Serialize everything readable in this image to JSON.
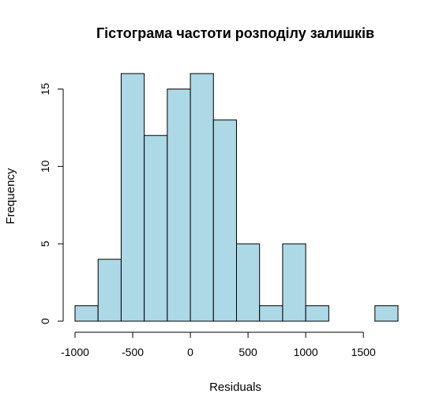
{
  "chart_data": {
    "type": "bar",
    "title": "Гістограма частоти розподілу залишків",
    "xlabel": "Residuals",
    "ylabel": "Frequency",
    "bar_color": "#add8e6",
    "border_color": "#000000",
    "grid": false,
    "bins": [
      {
        "x0": -1000,
        "x1": -800,
        "count": 1
      },
      {
        "x0": -800,
        "x1": -600,
        "count": 4
      },
      {
        "x0": -600,
        "x1": -400,
        "count": 16
      },
      {
        "x0": -400,
        "x1": -200,
        "count": 12
      },
      {
        "x0": -200,
        "x1": 0,
        "count": 15
      },
      {
        "x0": 0,
        "x1": 200,
        "count": 16
      },
      {
        "x0": 200,
        "x1": 400,
        "count": 13
      },
      {
        "x0": 400,
        "x1": 600,
        "count": 5
      },
      {
        "x0": 600,
        "x1": 800,
        "count": 1
      },
      {
        "x0": 800,
        "x1": 1000,
        "count": 5
      },
      {
        "x0": 1000,
        "x1": 1200,
        "count": 1
      },
      {
        "x0": 1200,
        "x1": 1400,
        "count": 0
      },
      {
        "x0": 1400,
        "x1": 1600,
        "count": 0
      },
      {
        "x0": 1600,
        "x1": 1800,
        "count": 1
      }
    ],
    "xlim": [
      -1000,
      1800
    ],
    "ylim": [
      0,
      16
    ],
    "x_ticks": [
      -1000,
      -500,
      0,
      500,
      1000,
      1500
    ],
    "x_tick_labels": [
      "-1000",
      "-500",
      "0",
      "500",
      "1000",
      "1500"
    ],
    "y_ticks": [
      0,
      5,
      10,
      15
    ],
    "y_tick_labels": [
      "0",
      "5",
      "10",
      "15"
    ]
  }
}
